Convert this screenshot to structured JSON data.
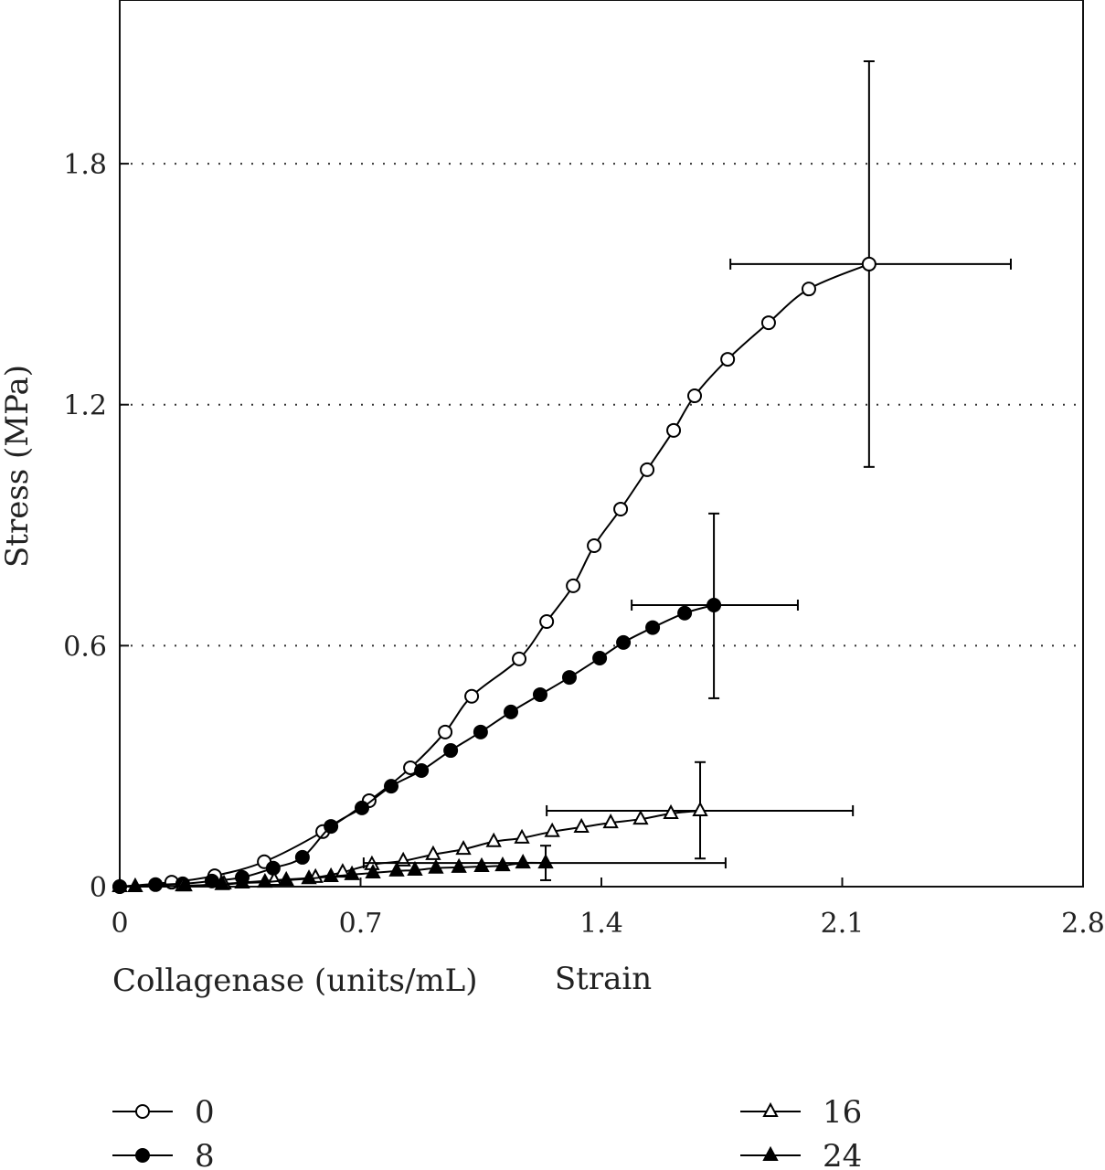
{
  "chart_data": {
    "type": "line",
    "title": "",
    "xlabel": "Strain",
    "ylabel": "Stress (MPa)",
    "xlim": [
      0,
      2.8
    ],
    "ylim": [
      0,
      2.2
    ],
    "xticks": [
      0,
      0.7,
      1.4,
      2.1,
      2.8
    ],
    "xtick_labels": [
      "0",
      "0.7",
      "1.4",
      "2.1",
      "2.8"
    ],
    "yticks": [
      0,
      0.6,
      1.2,
      1.8
    ],
    "ytick_labels": [
      "0",
      "0.6",
      "1.2",
      "1.8"
    ],
    "grid": "horizontal dotted",
    "legend": {
      "title": "Collagenase (units/mL)",
      "placement": "bottom"
    },
    "series": [
      {
        "name": "0",
        "marker": "circle-open",
        "x": [
          0,
          0.151,
          0.276,
          0.42,
          0.59,
          0.725,
          0.845,
          0.946,
          1.023,
          1.161,
          1.241,
          1.318,
          1.379,
          1.456,
          1.533,
          1.61,
          1.671,
          1.767,
          1.886,
          2.003,
          2.178
        ],
        "y": [
          0,
          0.011,
          0.027,
          0.062,
          0.137,
          0.214,
          0.296,
          0.385,
          0.474,
          0.567,
          0.66,
          0.749,
          0.849,
          0.94,
          1.038,
          1.136,
          1.222,
          1.313,
          1.404,
          1.488,
          1.55
        ],
        "error": {
          "x": [
            1.775,
            2.59
          ],
          "y": [
            1.045,
            2.055
          ]
        }
      },
      {
        "name": "8",
        "marker": "circle-filled",
        "x": [
          0,
          0.104,
          0.183,
          0.268,
          0.356,
          0.446,
          0.531,
          0.614,
          0.704,
          0.789,
          0.877,
          0.962,
          1.049,
          1.137,
          1.222,
          1.307,
          1.395,
          1.464,
          1.549,
          1.642,
          1.727
        ],
        "y": [
          0,
          0.005,
          0.007,
          0.014,
          0.023,
          0.046,
          0.073,
          0.15,
          0.196,
          0.25,
          0.289,
          0.339,
          0.385,
          0.435,
          0.478,
          0.521,
          0.569,
          0.608,
          0.645,
          0.681,
          0.701
        ],
        "error": {
          "x": [
            1.488,
            1.971
          ],
          "y": [
            0.469,
            0.929
          ]
        }
      },
      {
        "name": "16",
        "marker": "triangle-open",
        "x": [
          0,
          0.183,
          0.303,
          0.449,
          0.569,
          0.648,
          0.733,
          0.824,
          0.911,
          0.999,
          1.087,
          1.169,
          1.257,
          1.342,
          1.427,
          1.514,
          1.602,
          1.687
        ],
        "y": [
          0,
          0.002,
          0.007,
          0.016,
          0.023,
          0.036,
          0.055,
          0.064,
          0.08,
          0.093,
          0.112,
          0.121,
          0.137,
          0.148,
          0.159,
          0.168,
          0.182,
          0.189
        ],
        "error": {
          "x": [
            1.241,
            2.131
          ],
          "y": [
            0.07,
            0.31
          ]
        }
      },
      {
        "name": "24",
        "marker": "triangle-filled",
        "x": [
          0,
          0.045,
          0.189,
          0.298,
          0.356,
          0.422,
          0.484,
          0.55,
          0.614,
          0.675,
          0.736,
          0.805,
          0.858,
          0.919,
          0.986,
          1.052,
          1.113,
          1.172,
          1.238
        ],
        "y": [
          0,
          0,
          0.002,
          0.005,
          0.009,
          0.011,
          0.016,
          0.02,
          0.025,
          0.03,
          0.034,
          0.039,
          0.041,
          0.046,
          0.048,
          0.05,
          0.052,
          0.059,
          0.059
        ],
        "error": {
          "x": [
            0.709,
            1.761
          ],
          "y": [
            0.016,
            0.102
          ]
        }
      }
    ]
  }
}
